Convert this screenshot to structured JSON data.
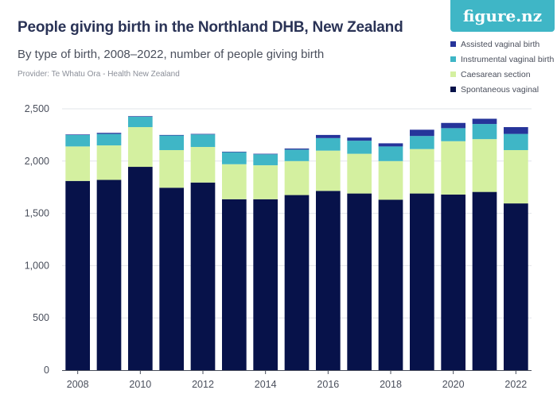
{
  "header": {
    "title": "People giving birth in the Northland DHB, New Zealand",
    "subtitle": "By type of birth, 2008–2022, number of people giving birth",
    "provider": "Provider: Te Whatu Ora - Health New Zealand",
    "logo": "figure.nz"
  },
  "colors": {
    "Assisted vaginal birth": "#26349a",
    "Instrumental vaginal birth": "#3fb6c6",
    "Caesarean section": "#d4f0a0",
    "Spontaneous vaginal": "#07124a",
    "title": "#2a3356",
    "gridline": "#e2e4ea"
  },
  "legend": [
    {
      "label": "Assisted vaginal birth",
      "color": "#26349a"
    },
    {
      "label": "Instrumental vaginal birth",
      "color": "#3fb6c6"
    },
    {
      "label": "Caesarean section",
      "color": "#d4f0a0"
    },
    {
      "label": "Spontaneous vaginal",
      "color": "#07124a"
    }
  ],
  "chart_data": {
    "type": "bar",
    "stacked": true,
    "title": "People giving birth in the Northland DHB, New Zealand",
    "xlabel": "",
    "ylabel": "",
    "ylim": [
      0,
      2500
    ],
    "yticks": [
      0,
      500,
      1000,
      1500,
      2000,
      2500
    ],
    "ytick_labels": [
      "0",
      "500",
      "1,000",
      "1,500",
      "2,000",
      "2,500"
    ],
    "categories": [
      2008,
      2009,
      2010,
      2011,
      2012,
      2013,
      2014,
      2015,
      2016,
      2017,
      2018,
      2019,
      2020,
      2021,
      2022
    ],
    "xtick_labels": [
      "2008",
      "2010",
      "2012",
      "2014",
      "2016",
      "2018",
      "2020",
      "2022"
    ],
    "legend_position": "top-right",
    "grid": true,
    "series": [
      {
        "name": "Spontaneous vaginal",
        "values": [
          1810,
          1820,
          1945,
          1745,
          1795,
          1635,
          1635,
          1675,
          1715,
          1690,
          1630,
          1690,
          1680,
          1705,
          1595
        ]
      },
      {
        "name": "Caesarean section",
        "values": [
          330,
          330,
          380,
          360,
          340,
          335,
          325,
          325,
          385,
          380,
          370,
          425,
          510,
          505,
          510
        ]
      },
      {
        "name": "Instrumental vaginal birth",
        "values": [
          110,
          110,
          100,
          140,
          120,
          115,
          105,
          110,
          120,
          125,
          140,
          125,
          125,
          145,
          155
        ]
      },
      {
        "name": "Assisted vaginal birth",
        "values": [
          5,
          10,
          5,
          5,
          5,
          5,
          5,
          10,
          30,
          30,
          30,
          60,
          50,
          50,
          65
        ]
      }
    ]
  }
}
